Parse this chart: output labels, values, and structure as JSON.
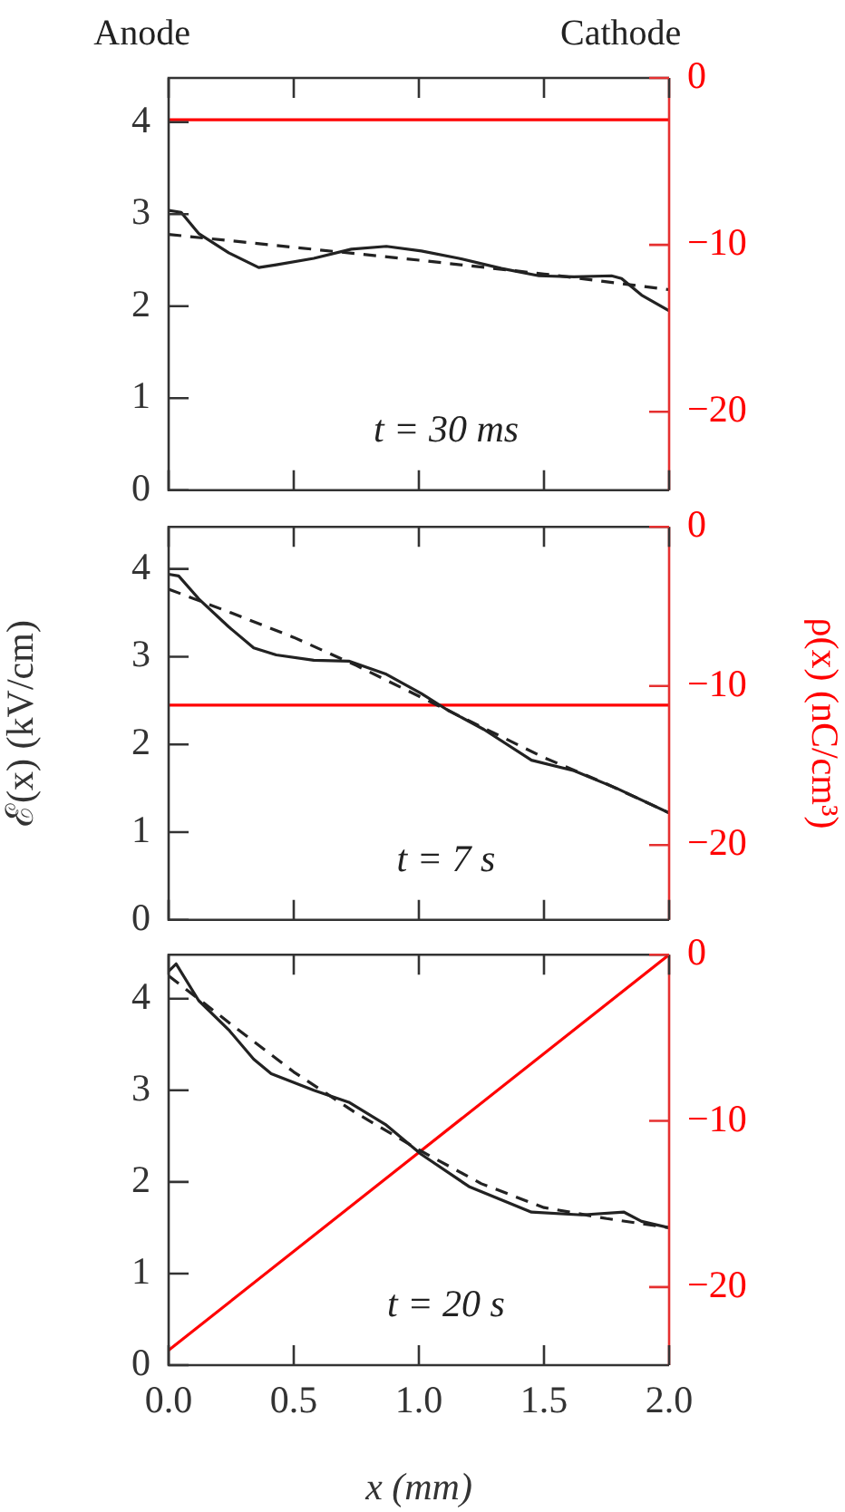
{
  "chart_data": [
    {
      "type": "line",
      "annotations": [
        "Anode",
        "Cathode",
        "t = 30 ms"
      ],
      "xlim": [
        0,
        2
      ],
      "xticks": [
        0,
        0.5,
        1,
        1.5,
        2
      ],
      "ylim": [
        0,
        4.48
      ],
      "yticks": [
        0,
        1,
        2,
        3,
        4
      ],
      "y2lim": [
        -24.7,
        0
      ],
      "y2ticks": [
        -20,
        -10,
        0
      ],
      "tick_labels": "y",
      "marker": "none",
      "series": [
        {
          "color": "#222222",
          "x": [
            0,
            0.05,
            0.12,
            0.24,
            0.36,
            0.43,
            0.58,
            0.73,
            0.87,
            1.01,
            1.16,
            1.33,
            1.48,
            1.62,
            1.77,
            1.81,
            1.89,
            2.0
          ],
          "values": [
            3.04,
            3.02,
            2.79,
            2.58,
            2.42,
            2.45,
            2.52,
            2.62,
            2.65,
            2.6,
            2.52,
            2.41,
            2.33,
            2.32,
            2.33,
            2.3,
            2.12,
            1.95
          ]
        },
        {
          "color": "#222222",
          "line_style": "dashed",
          "x": [
            0,
            0.5,
            1,
            1.5,
            2
          ],
          "values": [
            2.78,
            2.64,
            2.5,
            2.35,
            2.18
          ]
        },
        {
          "color": "#ff0000",
          "axis": "y2",
          "x": [
            0,
            2
          ],
          "values": [
            -2.5,
            -2.5
          ]
        }
      ]
    },
    {
      "type": "line",
      "annotations": [
        "t = 7 s"
      ],
      "ylabel": "ℰ(x) (kV/cm)",
      "y2label": "ρ(x) (nC/cm³)",
      "xlim": [
        0,
        2
      ],
      "xticks": [
        0,
        0.5,
        1,
        1.5,
        2
      ],
      "ylim": [
        0,
        4.48
      ],
      "yticks": [
        0,
        1,
        2,
        3,
        4
      ],
      "y2lim": [
        -24.7,
        0
      ],
      "y2ticks": [
        -20,
        -10,
        0
      ],
      "tick_labels": "y",
      "marker": "none",
      "series": [
        {
          "color": "#222222",
          "x": [
            0,
            0.04,
            0.12,
            0.24,
            0.34,
            0.43,
            0.58,
            0.72,
            0.87,
            1.01,
            1.11,
            1.26,
            1.45,
            1.62,
            1.79,
            2.0
          ],
          "values": [
            3.94,
            3.92,
            3.66,
            3.34,
            3.1,
            3.02,
            2.96,
            2.95,
            2.8,
            2.58,
            2.4,
            2.17,
            1.82,
            1.7,
            1.5,
            1.22
          ]
        },
        {
          "color": "#222222",
          "line_style": "dashed",
          "x": [
            0,
            0.25,
            0.5,
            0.75,
            1,
            1.25,
            1.5,
            1.75,
            2
          ],
          "values": [
            3.77,
            3.5,
            3.22,
            2.9,
            2.55,
            2.2,
            1.85,
            1.55,
            1.22
          ]
        },
        {
          "color": "#ff0000",
          "axis": "y2",
          "x": [
            0,
            2
          ],
          "values": [
            -11.2,
            -11.2
          ]
        }
      ]
    },
    {
      "type": "line",
      "annotations": [
        "t = 20 s"
      ],
      "xlabel": "x (mm)",
      "xlim": [
        0,
        2
      ],
      "xticks": [
        {
          "value": 0,
          "label": "0.0"
        },
        0.5,
        {
          "value": 1,
          "label": "1.0"
        },
        1.5,
        {
          "value": 2,
          "label": "2.0"
        }
      ],
      "ylim": [
        0,
        4.48
      ],
      "yticks": [
        0,
        1,
        2,
        3,
        4
      ],
      "y2lim": [
        -24.7,
        0
      ],
      "y2ticks": [
        -20,
        -10,
        0
      ],
      "marker": "none",
      "series": [
        {
          "color": "#222222",
          "x": [
            0,
            0.03,
            0.12,
            0.24,
            0.34,
            0.41,
            0.58,
            0.72,
            0.87,
            1.01,
            1.2,
            1.45,
            1.65,
            1.82,
            1.89,
            2.0
          ],
          "values": [
            4.3,
            4.38,
            3.98,
            3.66,
            3.34,
            3.18,
            3.0,
            2.87,
            2.62,
            2.3,
            1.95,
            1.67,
            1.64,
            1.67,
            1.57,
            1.5
          ]
        },
        {
          "color": "#222222",
          "line_style": "dashed",
          "x": [
            0,
            0.25,
            0.5,
            0.75,
            1,
            1.25,
            1.5,
            1.75,
            2
          ],
          "values": [
            4.25,
            3.72,
            3.2,
            2.75,
            2.35,
            1.98,
            1.72,
            1.6,
            1.5
          ]
        },
        {
          "color": "#ff0000",
          "axis": "y2",
          "x": [
            0,
            2
          ],
          "values": [
            -23.8,
            0
          ]
        }
      ]
    }
  ]
}
